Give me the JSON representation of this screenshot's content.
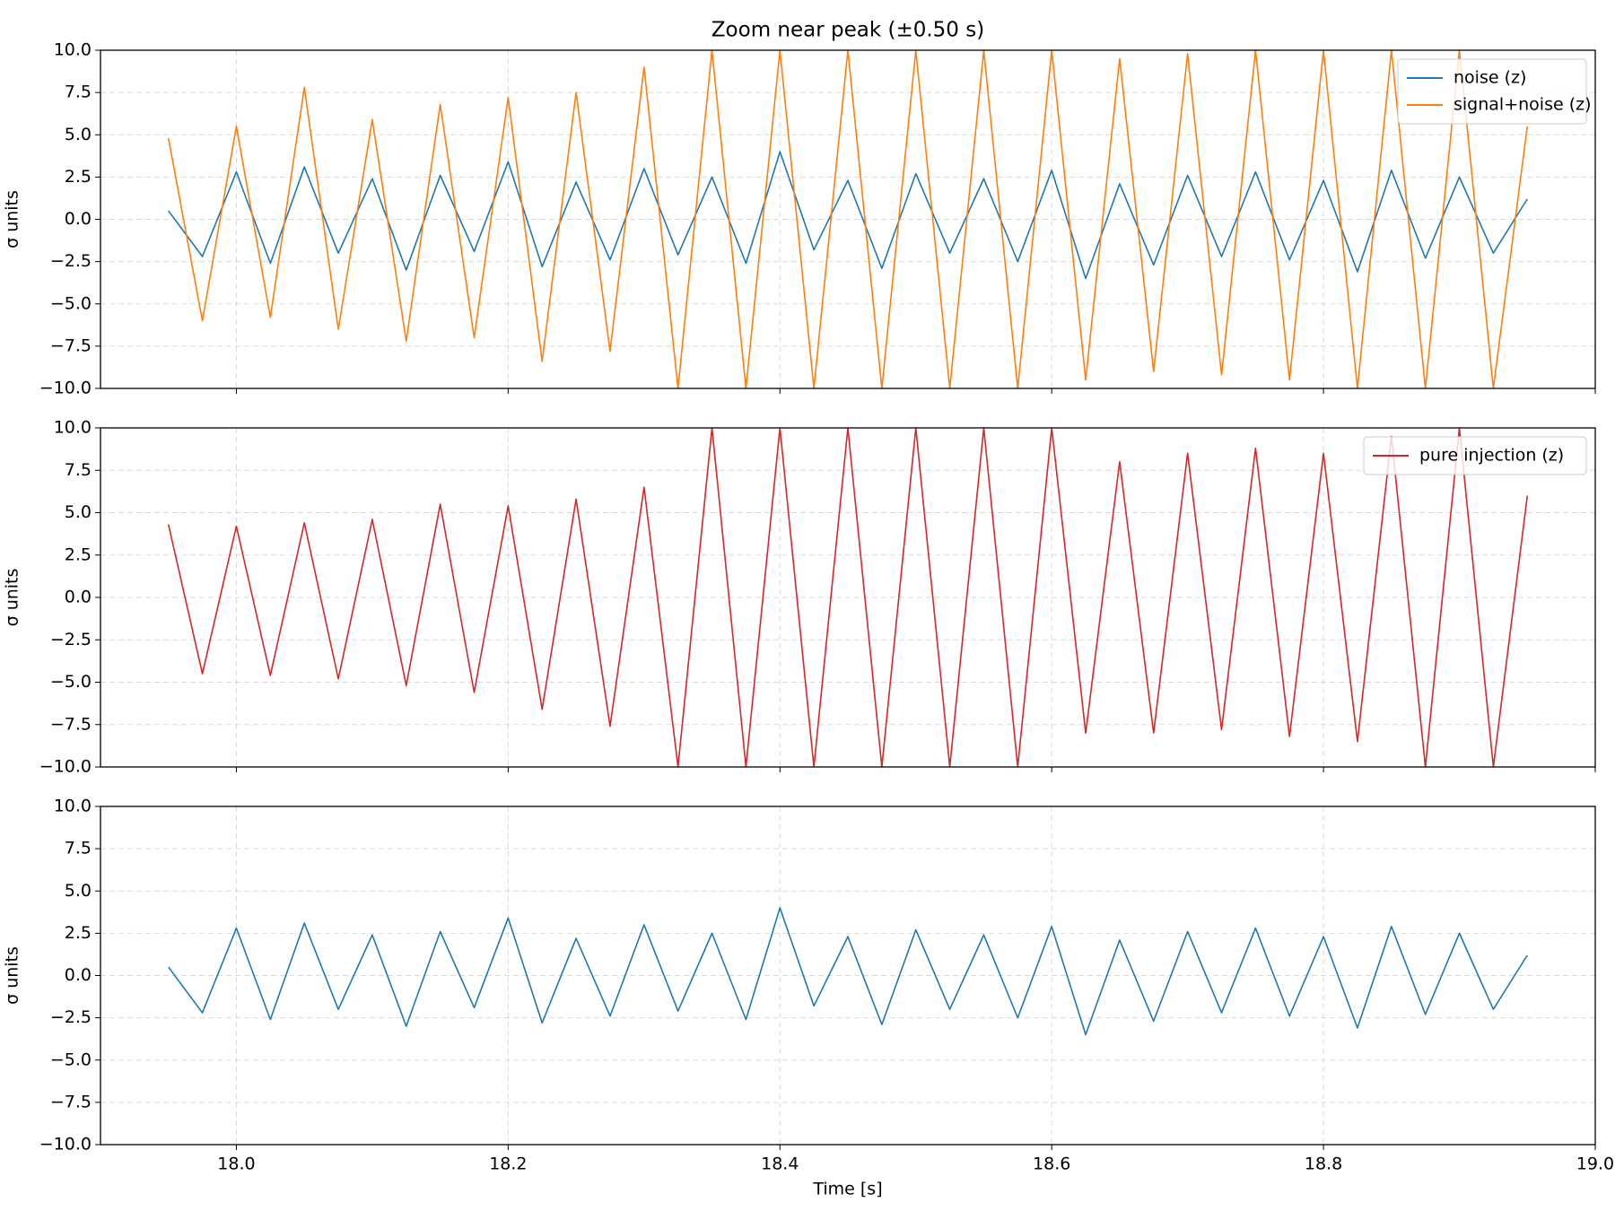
{
  "chart_data": [
    {
      "type": "line",
      "title": "Zoom near peak (±0.50 s)",
      "ylabel": "σ units",
      "x": [
        17.95,
        17.975,
        18.0,
        18.025,
        18.05,
        18.075,
        18.1,
        18.125,
        18.15,
        18.175,
        18.2,
        18.225,
        18.25,
        18.275,
        18.3,
        18.325,
        18.35,
        18.375,
        18.4,
        18.425,
        18.45,
        18.475,
        18.5,
        18.525,
        18.55,
        18.575,
        18.6,
        18.625,
        18.65,
        18.675,
        18.7,
        18.725,
        18.75,
        18.775,
        18.8,
        18.825,
        18.85,
        18.875,
        18.9,
        18.925,
        18.95
      ],
      "series": [
        {
          "name": "noise (z)",
          "color": "#1f77b4",
          "values": [
            0.5,
            -2.2,
            2.8,
            -2.6,
            3.1,
            -2.0,
            2.4,
            -3.0,
            2.6,
            -1.9,
            3.4,
            -2.8,
            2.2,
            -2.4,
            3.0,
            -2.1,
            2.5,
            -2.6,
            4.0,
            -1.8,
            2.3,
            -2.9,
            2.7,
            -2.0,
            2.4,
            -2.5,
            2.9,
            -3.5,
            2.1,
            -2.7,
            2.6,
            -2.2,
            2.8,
            -2.4,
            2.3,
            -3.1,
            2.9,
            -2.3,
            2.5,
            -2.0,
            1.2
          ]
        },
        {
          "name": "signal+noise (z)",
          "color": "#ff7f0e",
          "values": [
            4.8,
            -6.0,
            5.5,
            -5.8,
            7.8,
            -6.5,
            5.9,
            -7.2,
            6.8,
            -7.0,
            7.2,
            -8.4,
            7.5,
            -7.8,
            9.0,
            -10,
            10,
            -10,
            10,
            -10,
            10,
            -10,
            10,
            -10,
            10,
            -10,
            10,
            -9.5,
            9.5,
            -9.0,
            9.8,
            -9.2,
            10,
            -9.5,
            10,
            -10,
            10,
            -10,
            10,
            -10,
            5.5
          ]
        }
      ],
      "xlim": [
        17.9,
        19.0
      ],
      "ylim": [
        -10,
        10
      ],
      "xticks": [
        {
          "value": 18.0,
          "label": "18.0"
        },
        18.2,
        18.4,
        18.6,
        18.8,
        {
          "value": 19.0,
          "label": "19.0"
        }
      ],
      "yticks": [
        {
          "value": -10,
          "label": "−10.0"
        },
        {
          "value": -7.5,
          "label": "−7.5"
        },
        {
          "value": -5,
          "label": "−5.0"
        },
        {
          "value": -2.5,
          "label": "−2.5"
        },
        {
          "value": 0,
          "label": "0.0"
        },
        2.5,
        {
          "value": 5,
          "label": "5.0"
        },
        7.5,
        {
          "value": 10,
          "label": "10.0"
        }
      ],
      "grid": true,
      "legend": "upper right"
    },
    {
      "type": "line",
      "ylabel": "σ units",
      "x": [
        17.95,
        17.975,
        18.0,
        18.025,
        18.05,
        18.075,
        18.1,
        18.125,
        18.15,
        18.175,
        18.2,
        18.225,
        18.25,
        18.275,
        18.3,
        18.325,
        18.35,
        18.375,
        18.4,
        18.425,
        18.45,
        18.475,
        18.5,
        18.525,
        18.55,
        18.575,
        18.6,
        18.625,
        18.65,
        18.675,
        18.7,
        18.725,
        18.75,
        18.775,
        18.8,
        18.825,
        18.85,
        18.875,
        18.9,
        18.925,
        18.95
      ],
      "series": [
        {
          "name": "pure injection (z)",
          "color": "#d62728",
          "values": [
            4.3,
            -4.5,
            4.2,
            -4.6,
            4.4,
            -4.8,
            4.6,
            -5.2,
            5.5,
            -5.6,
            5.4,
            -6.6,
            5.8,
            -7.6,
            6.5,
            -10,
            10,
            -10,
            10,
            -10,
            10,
            -10,
            10,
            -10,
            10,
            -10,
            10,
            -8.0,
            8.0,
            -8.0,
            8.5,
            -7.8,
            8.8,
            -8.2,
            8.5,
            -8.5,
            9.5,
            -10,
            10,
            -10,
            6.0
          ]
        }
      ],
      "xlim": [
        17.9,
        19.0
      ],
      "ylim": [
        -10,
        10
      ],
      "xticks": [
        {
          "value": 18.0,
          "label": "18.0"
        },
        18.2,
        18.4,
        18.6,
        18.8,
        {
          "value": 19.0,
          "label": "19.0"
        }
      ],
      "yticks": [
        {
          "value": -10,
          "label": "−10.0"
        },
        {
          "value": -7.5,
          "label": "−7.5"
        },
        {
          "value": -5,
          "label": "−5.0"
        },
        {
          "value": -2.5,
          "label": "−2.5"
        },
        {
          "value": 0,
          "label": "0.0"
        },
        2.5,
        {
          "value": 5,
          "label": "5.0"
        },
        7.5,
        {
          "value": 10,
          "label": "10.0"
        }
      ],
      "grid": true,
      "legend": "upper right"
    },
    {
      "type": "line",
      "ylabel": "σ units",
      "xlabel": "Time [s]",
      "x": [
        17.95,
        17.975,
        18.0,
        18.025,
        18.05,
        18.075,
        18.1,
        18.125,
        18.15,
        18.175,
        18.2,
        18.225,
        18.25,
        18.275,
        18.3,
        18.325,
        18.35,
        18.375,
        18.4,
        18.425,
        18.45,
        18.475,
        18.5,
        18.525,
        18.55,
        18.575,
        18.6,
        18.625,
        18.65,
        18.675,
        18.7,
        18.725,
        18.75,
        18.775,
        18.8,
        18.825,
        18.85,
        18.875,
        18.9,
        18.925,
        18.95
      ],
      "series": [
        {
          "color": "#1f77b4",
          "values": [
            0.5,
            -2.2,
            2.8,
            -2.6,
            3.1,
            -2.0,
            2.4,
            -3.0,
            2.6,
            -1.9,
            3.4,
            -2.8,
            2.2,
            -2.4,
            3.0,
            -2.1,
            2.5,
            -2.6,
            4.0,
            -1.8,
            2.3,
            -2.9,
            2.7,
            -2.0,
            2.4,
            -2.5,
            2.9,
            -3.5,
            2.1,
            -2.7,
            2.6,
            -2.2,
            2.8,
            -2.4,
            2.3,
            -3.1,
            2.9,
            -2.3,
            2.5,
            -2.0,
            1.2
          ]
        }
      ],
      "xlim": [
        17.9,
        19.0
      ],
      "ylim": [
        -10,
        10
      ],
      "xticks": [
        {
          "value": 18.0,
          "label": "18.0"
        },
        18.2,
        18.4,
        18.6,
        18.8,
        {
          "value": 19.0,
          "label": "19.0"
        }
      ],
      "yticks": [
        {
          "value": -10,
          "label": "−10.0"
        },
        {
          "value": -7.5,
          "label": "−7.5"
        },
        {
          "value": -5,
          "label": "−5.0"
        },
        {
          "value": -2.5,
          "label": "−2.5"
        },
        {
          "value": 0,
          "label": "0.0"
        },
        2.5,
        {
          "value": 5,
          "label": "5.0"
        },
        7.5,
        {
          "value": 10,
          "label": "10.0"
        }
      ],
      "grid": true
    }
  ]
}
